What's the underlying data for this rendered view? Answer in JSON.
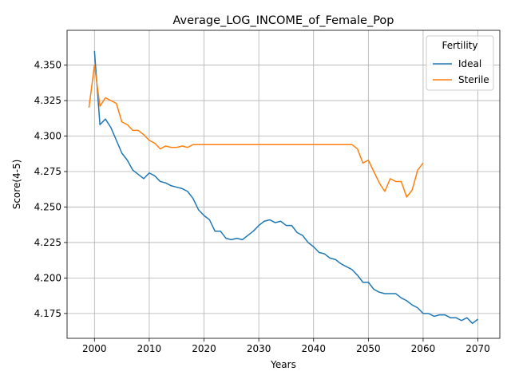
{
  "chart_data": {
    "type": "line",
    "title": "Average_LOG_INCOME_of_Female_Pop",
    "xlabel": "Years",
    "ylabel": "Score(4-5)",
    "xlim": [
      1995,
      2074
    ],
    "ylim": [
      4.1575,
      4.3745
    ],
    "xticks": [
      2000,
      2010,
      2020,
      2030,
      2040,
      2050,
      2060,
      2070
    ],
    "yticks": [
      4.175,
      4.2,
      4.225,
      4.25,
      4.275,
      4.3,
      4.325,
      4.35
    ],
    "ytick_labels": [
      "4.175",
      "4.200",
      "4.225",
      "4.250",
      "4.275",
      "4.300",
      "4.325",
      "4.350"
    ],
    "grid": true,
    "legend": {
      "title": "Fertility",
      "placement": "top-right"
    },
    "series": [
      {
        "name": "Ideal",
        "color": "#1f77b4",
        "x": [
          2000,
          2001,
          2002,
          2003,
          2004,
          2005,
          2006,
          2007,
          2008,
          2009,
          2010,
          2011,
          2012,
          2013,
          2014,
          2015,
          2016,
          2017,
          2018,
          2019,
          2020,
          2021,
          2022,
          2023,
          2024,
          2025,
          2026,
          2027,
          2028,
          2029,
          2030,
          2031,
          2032,
          2033,
          2034,
          2035,
          2036,
          2037,
          2038,
          2039,
          2040,
          2041,
          2042,
          2043,
          2044,
          2045,
          2046,
          2047,
          2048,
          2049,
          2050,
          2051,
          2052,
          2053,
          2054,
          2055,
          2056,
          2057,
          2058,
          2059,
          2060,
          2061,
          2062,
          2063,
          2064,
          2065,
          2066,
          2067,
          2068,
          2069,
          2070
        ],
        "y": [
          4.36,
          4.308,
          4.312,
          4.306,
          4.297,
          4.288,
          4.283,
          4.276,
          4.273,
          4.27,
          4.274,
          4.272,
          4.268,
          4.267,
          4.265,
          4.264,
          4.263,
          4.261,
          4.256,
          4.248,
          4.244,
          4.241,
          4.233,
          4.233,
          4.228,
          4.227,
          4.228,
          4.227,
          4.23,
          4.233,
          4.237,
          4.24,
          4.241,
          4.239,
          4.24,
          4.237,
          4.237,
          4.232,
          4.23,
          4.225,
          4.222,
          4.218,
          4.217,
          4.214,
          4.213,
          4.21,
          4.208,
          4.206,
          4.202,
          4.197,
          4.197,
          4.192,
          4.19,
          4.189,
          4.189,
          4.189,
          4.186,
          4.184,
          4.181,
          4.179,
          4.175,
          4.175,
          4.173,
          4.174,
          4.174,
          4.172,
          4.172,
          4.17,
          4.172,
          4.168,
          4.171
        ]
      },
      {
        "name": "Sterile",
        "color": "#ff7f0e",
        "x": [
          1999,
          2000,
          2001,
          2002,
          2003,
          2004,
          2005,
          2006,
          2007,
          2008,
          2009,
          2010,
          2011,
          2012,
          2013,
          2014,
          2015,
          2016,
          2017,
          2018,
          2019,
          2020,
          2021,
          2022,
          2023,
          2024,
          2025,
          2026,
          2027,
          2028,
          2029,
          2030,
          2031,
          2032,
          2033,
          2034,
          2035,
          2036,
          2037,
          2038,
          2039,
          2040,
          2041,
          2042,
          2043,
          2044,
          2045,
          2046,
          2047,
          2048,
          2049,
          2050,
          2051,
          2052,
          2053,
          2054,
          2055,
          2056,
          2057,
          2058,
          2059,
          2060
        ],
        "y": [
          4.32,
          4.35,
          4.321,
          4.327,
          4.325,
          4.323,
          4.31,
          4.308,
          4.304,
          4.304,
          4.301,
          4.297,
          4.295,
          4.291,
          4.293,
          4.292,
          4.292,
          4.293,
          4.292,
          4.294,
          4.294,
          4.294,
          4.294,
          4.294,
          4.294,
          4.294,
          4.294,
          4.294,
          4.294,
          4.294,
          4.294,
          4.294,
          4.294,
          4.294,
          4.294,
          4.294,
          4.294,
          4.294,
          4.294,
          4.294,
          4.294,
          4.294,
          4.294,
          4.294,
          4.294,
          4.294,
          4.294,
          4.294,
          4.294,
          4.291,
          4.281,
          4.283,
          4.275,
          4.267,
          4.261,
          4.27,
          4.268,
          4.268,
          4.257,
          4.262,
          4.276,
          4.281
        ]
      }
    ]
  }
}
